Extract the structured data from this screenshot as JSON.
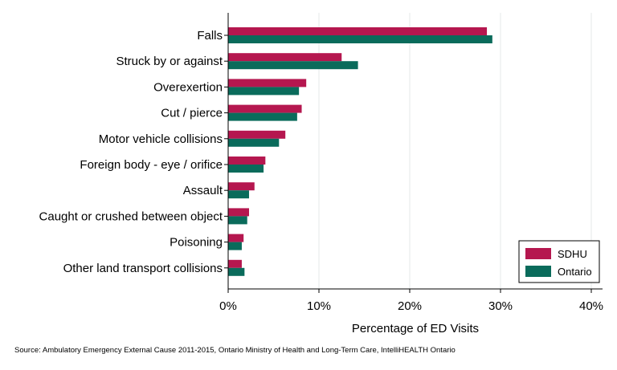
{
  "chart_data": {
    "type": "bar",
    "orientation": "horizontal",
    "categories": [
      "Falls",
      "Struck by or against",
      "Overexertion",
      "Cut / pierce",
      "Motor vehicle collisions",
      "Foreign body - eye / orifice",
      "Assault",
      "Caught or crushed between object",
      "Poisoning",
      "Other land transport collisions"
    ],
    "series": [
      {
        "name": "SDHU",
        "color": "#b5174f",
        "values": [
          28.5,
          12.5,
          8.6,
          8.1,
          6.3,
          4.1,
          2.9,
          2.3,
          1.7,
          1.5
        ]
      },
      {
        "name": "Ontario",
        "color": "#0a6b5b",
        "values": [
          29.1,
          14.3,
          7.8,
          7.6,
          5.6,
          3.9,
          2.3,
          2.1,
          1.5,
          1.8
        ]
      }
    ],
    "xlabel": "Percentage of ED Visits",
    "ylabel": "",
    "xlim": [
      0,
      40
    ],
    "xticks": [
      0,
      10,
      20,
      30,
      40
    ],
    "xtick_labels": [
      "0%",
      "10%",
      "20%",
      "30%",
      "40%"
    ],
    "grid": true,
    "legend_position": "bottom-right"
  },
  "source": "Source: Ambulatory Emergency External Cause 2011-2015, Ontario Ministry of Health and Long-Term Care, IntelliHEALTH Ontario"
}
